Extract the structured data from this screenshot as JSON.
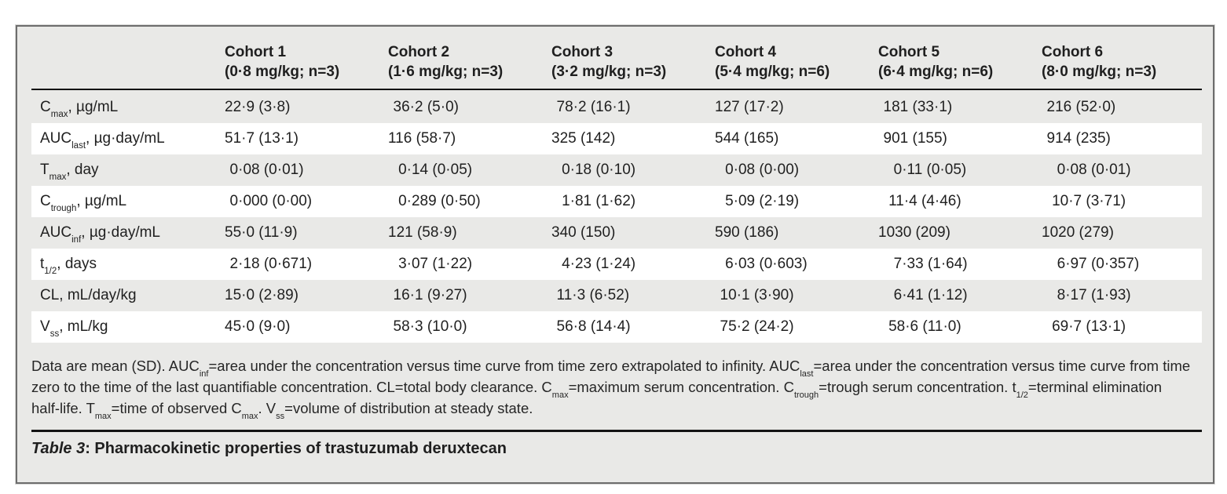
{
  "table": {
    "columns": [
      {
        "name": "Cohort 1",
        "dose": "(0·8 mg/kg; n=3)"
      },
      {
        "name": "Cohort 2",
        "dose": "(1·6 mg/kg; n=3)"
      },
      {
        "name": "Cohort 3",
        "dose": "(3·2 mg/kg; n=3)"
      },
      {
        "name": "Cohort 4",
        "dose": "(5·4 mg/kg; n=6)"
      },
      {
        "name": "Cohort 5",
        "dose": "(6·4 mg/kg; n=6)"
      },
      {
        "name": "Cohort 6",
        "dose": "(8·0 mg/kg; n=3)"
      }
    ],
    "rows": [
      {
        "label": {
          "base": "C",
          "sub": "max",
          "rest": ", µg/mL"
        },
        "values": [
          "22·9 (3·8)",
          "36·2 (5·0)",
          "78·2 (16·1)",
          "127 (17·2)",
          "181 (33·1)",
          "216 (52·0)"
        ]
      },
      {
        "label": {
          "base": "AUC",
          "sub": "last",
          "rest": ", µg·day/mL"
        },
        "values": [
          "51·7 (13·1)",
          "116 (58·7)",
          "325 (142)",
          "544 (165)",
          "901 (155)",
          "914 (235)"
        ]
      },
      {
        "label": {
          "base": "T",
          "sub": "max",
          "rest": ", day"
        },
        "values": [
          "0·08 (0·01)",
          "0·14 (0·05)",
          "0·18 (0·10)",
          "0·08 (0·00)",
          "0·11 (0·05)",
          "0·08 (0·01)"
        ]
      },
      {
        "label": {
          "base": "C",
          "sub": "trough",
          "rest": ", µg/mL"
        },
        "values": [
          "0·000 (0·00)",
          "0·289 (0·50)",
          "1·81 (1·62)",
          "5·09 (2·19)",
          "11·4 (4·46)",
          "10·7 (3·71)"
        ]
      },
      {
        "label": {
          "base": "AUC",
          "sub": "inf",
          "rest": ", µg·day/mL"
        },
        "values": [
          "55·0 (11·9)",
          "121 (58·9)",
          "340 (150)",
          "590 (186)",
          "1030 (209)",
          "1020 (279)"
        ]
      },
      {
        "label": {
          "base": "t",
          "sub": "1/2",
          "rest": ", days"
        },
        "values": [
          "2·18 (0·671)",
          "3·07 (1·22)",
          "4·23 (1·24)",
          "6·03 (0·603)",
          "7·33 (1·64)",
          "6·97 (0·357)"
        ]
      },
      {
        "label": {
          "base": "CL",
          "sub": "",
          "rest": ", mL/day/kg"
        },
        "values": [
          "15·0 (2·89)",
          "16·1 (9·27)",
          "11·3 (6·52)",
          "10·1 (3·90)",
          "6·41 (1·12)",
          "8·17 (1·93)"
        ]
      },
      {
        "label": {
          "base": "V",
          "sub": "ss",
          "rest": ", mL/kg"
        },
        "values": [
          "45·0 (9·0)",
          "58·3 (10·0)",
          "56·8 (14·4)",
          "75·2 (24·2)",
          "58·6 (11·0)",
          "69·7 (13·1)"
        ]
      }
    ]
  },
  "footnote": {
    "segments": [
      {
        "t": "Data are mean (SD). AUC"
      },
      {
        "s": "inf"
      },
      {
        "t": "=area under the concentration versus time curve from time zero extrapolated to infinity. AUC"
      },
      {
        "s": "last"
      },
      {
        "t": "=area under the concentration versus time curve from time zero to the time of the last quantifiable concentration. CL=total body clearance. C"
      },
      {
        "s": "max"
      },
      {
        "t": "=maximum serum concentration. C"
      },
      {
        "s": "trough"
      },
      {
        "t": "=trough serum concentration. t"
      },
      {
        "s": "1/2"
      },
      {
        "t": "=terminal elimination half-life. T"
      },
      {
        "s": "max"
      },
      {
        "t": "=time of observed C"
      },
      {
        "s": "max"
      },
      {
        "t": ". V"
      },
      {
        "s": "ss"
      },
      {
        "t": "=volume of distribution at steady state."
      }
    ]
  },
  "caption": {
    "prefix": "Table 3",
    "rest": ": Pharmacokinetic properties of trastuzumab deruxtecan"
  },
  "colors": {
    "panel_background": "#e9e9e7",
    "stripe": "#ffffff",
    "rule": "#101010",
    "border": "#6d6d6d",
    "text": "#1f1f1f"
  }
}
